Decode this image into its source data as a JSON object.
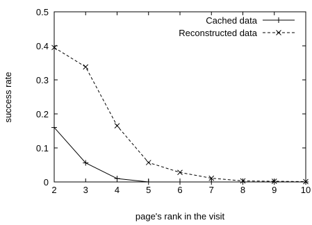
{
  "chart_data": {
    "type": "line",
    "title": "",
    "xlabel": "page's rank in the visit",
    "ylabel": "success rate",
    "x": [
      2,
      3,
      4,
      5,
      6,
      7,
      8,
      9,
      10
    ],
    "xlim": [
      2,
      10
    ],
    "ylim": [
      0,
      0.5
    ],
    "x_ticks": [
      2,
      3,
      4,
      5,
      6,
      7,
      8,
      9,
      10
    ],
    "y_ticks": [
      0,
      0.1,
      0.2,
      0.3,
      0.4,
      0.5
    ],
    "y_tick_labels": [
      "0",
      "0.1",
      "0.2",
      "0.3",
      "0.4",
      "0.5"
    ],
    "grid": false,
    "legend_position": "top-right",
    "series": [
      {
        "name": "Cached data",
        "marker": "plus",
        "line_style": "solid",
        "values": [
          0.16,
          0.056,
          0.01,
          0.0,
          0.0,
          0.0,
          0.0,
          0.0,
          0.0
        ]
      },
      {
        "name": "Reconstructed data",
        "marker": "cross",
        "line_style": "dashed",
        "values": [
          0.395,
          0.338,
          0.165,
          0.057,
          0.028,
          0.011,
          0.003,
          0.002,
          0.001
        ]
      }
    ]
  }
}
